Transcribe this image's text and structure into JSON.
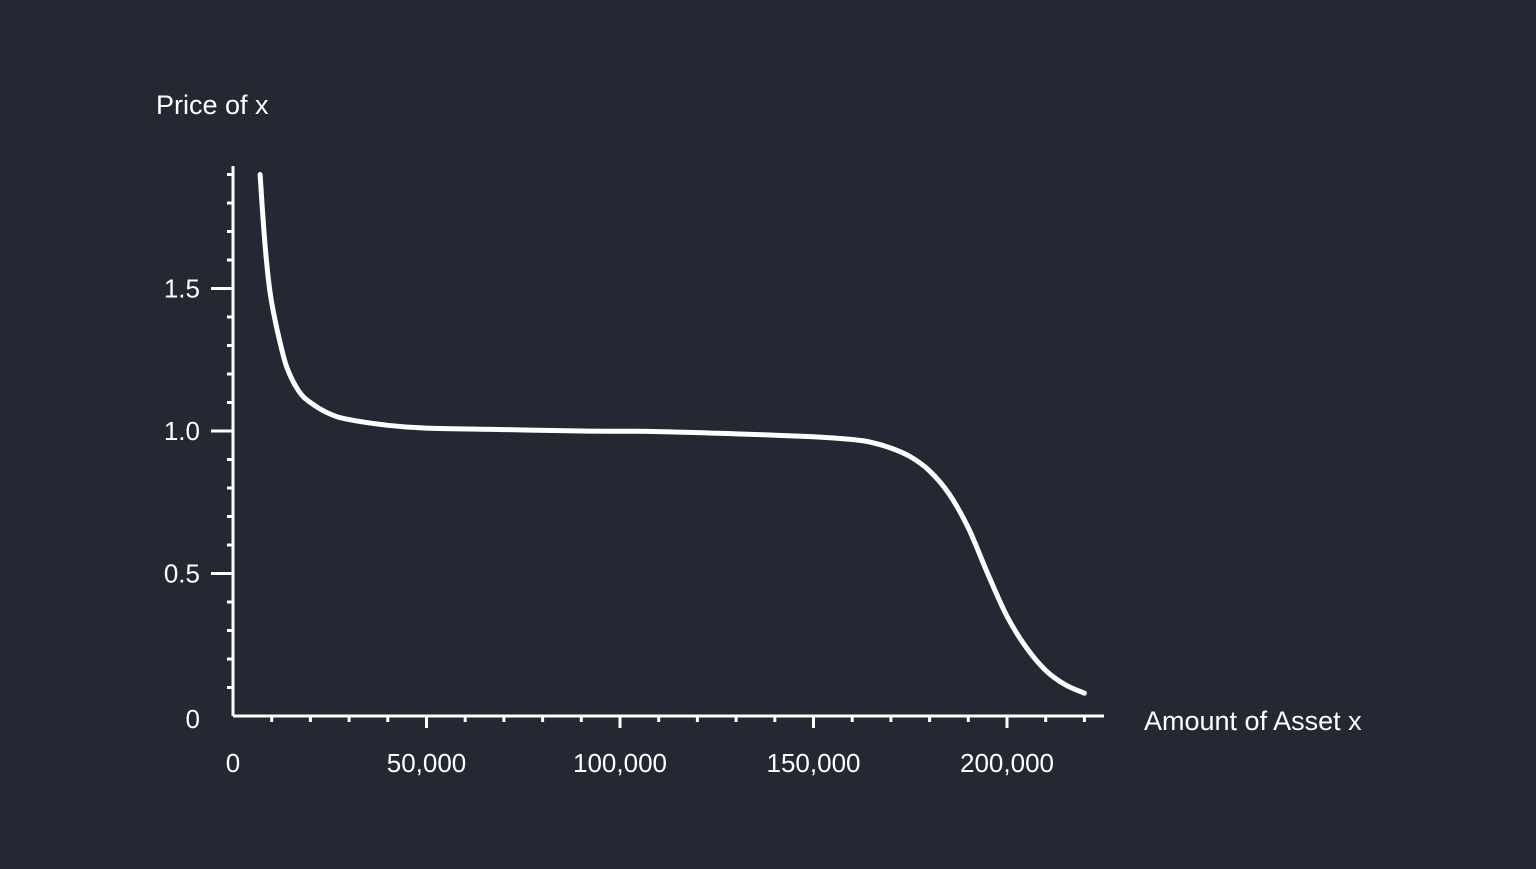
{
  "colors": {
    "background": "#232833",
    "foreground": "#ffffff"
  },
  "chart_data": {
    "type": "line",
    "title": "",
    "xlabel": "Amount of Asset x",
    "ylabel": "Price of x",
    "xlim": [
      0,
      225000
    ],
    "ylim": [
      0,
      1.9
    ],
    "x_ticks": [
      0,
      50000,
      100000,
      150000,
      200000
    ],
    "x_tick_labels": [
      "0",
      "50,000",
      "100,000",
      "150,000",
      "200,000"
    ],
    "y_ticks": [
      0,
      0.5,
      1.0,
      1.5
    ],
    "y_tick_labels": [
      "0",
      "0.5",
      "1.0",
      "1.5"
    ],
    "x_minor_step": 10000,
    "y_minor_step": 0.1,
    "grid": false,
    "legend": "none",
    "series": [
      {
        "x": [
          7000,
          8000,
          9000,
          10000,
          12000,
          14000,
          17000,
          20000,
          25000,
          30000,
          40000,
          50000,
          70000,
          90000,
          110000,
          130000,
          150000,
          160000,
          165000,
          170000,
          175000,
          180000,
          185000,
          190000,
          195000,
          200000,
          205000,
          210000,
          215000,
          220000
        ],
        "y": [
          1.9,
          1.7,
          1.55,
          1.45,
          1.32,
          1.22,
          1.14,
          1.1,
          1.06,
          1.04,
          1.02,
          1.01,
          1.005,
          1.0,
          0.998,
          0.99,
          0.98,
          0.97,
          0.96,
          0.94,
          0.91,
          0.86,
          0.78,
          0.66,
          0.5,
          0.35,
          0.24,
          0.16,
          0.11,
          0.08
        ]
      }
    ]
  }
}
